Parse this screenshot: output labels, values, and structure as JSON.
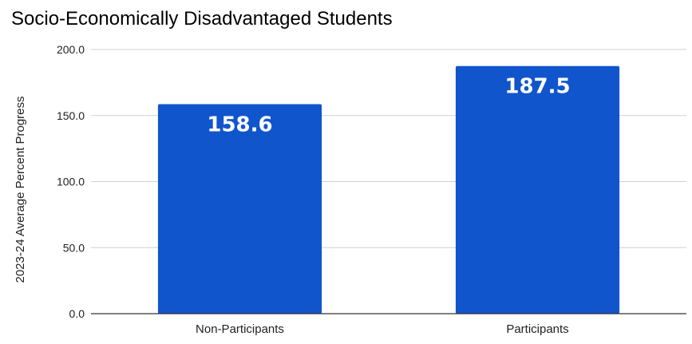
{
  "chart_data": {
    "type": "bar",
    "title": "Socio-Economically Disadvantaged Students",
    "xlabel": "",
    "ylabel": "2023-24 Average Percent Progress",
    "categories": [
      "Non-Participants",
      "Participants"
    ],
    "values": [
      158.6,
      187.5
    ],
    "data_labels": [
      "158.6",
      "187.5"
    ],
    "ylim": [
      0,
      200
    ],
    "yticks": [
      "0.0",
      "50.0",
      "100.0",
      "150.0",
      "200.0"
    ],
    "ytick_values": [
      0,
      50,
      100,
      150,
      200
    ],
    "grid": true,
    "legend": "none",
    "bar_color": "#1155cc"
  }
}
